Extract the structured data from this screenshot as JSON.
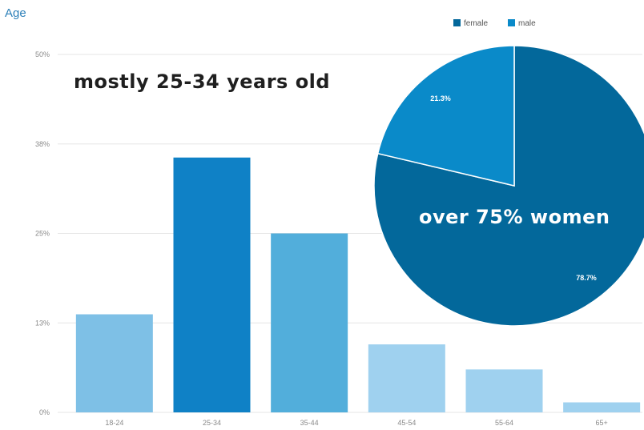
{
  "chart_data": [
    {
      "type": "bar",
      "title": "Age",
      "categories": [
        "18-24",
        "25-34",
        "35-44",
        "45-54",
        "55-64",
        "65+"
      ],
      "values": [
        13.7,
        35.6,
        25.0,
        9.5,
        6.0,
        1.4
      ],
      "colors": [
        "#7ec0e6",
        "#0f81c6",
        "#52aedb",
        "#9fd1ef",
        "#9fd1ef",
        "#9fd1ef"
      ],
      "y_tick_labels": [
        "0%",
        "13%",
        "25%",
        "38%",
        "50%"
      ],
      "y_tick_values": [
        0,
        12.5,
        25,
        37.5,
        50
      ],
      "ylim": [
        0,
        50
      ],
      "grid": true,
      "annotation": "mostly 25-34 years old"
    },
    {
      "type": "pie",
      "slices": [
        {
          "label": "female",
          "value": 78.7,
          "display": "78.7%",
          "color": "#03689b"
        },
        {
          "label": "male",
          "value": 21.3,
          "display": "21.3%",
          "color": "#0a8ac9"
        }
      ],
      "legend_position": "top-right",
      "annotation": "over 75% women"
    }
  ]
}
